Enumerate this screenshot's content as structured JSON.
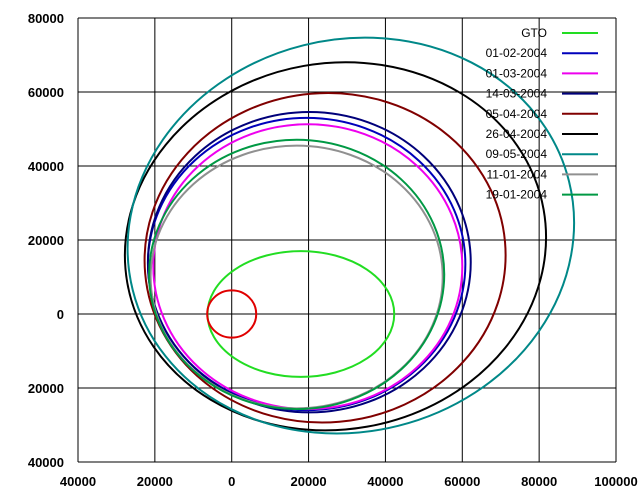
{
  "chart_data": {
    "type": "line",
    "title": "",
    "xlabel": "",
    "ylabel": "",
    "xlim": [
      -40000,
      100000
    ],
    "ylim": [
      -40000,
      80000
    ],
    "x_ticks": [
      -40000,
      -20000,
      0,
      20000,
      40000,
      60000,
      80000,
      100000
    ],
    "y_ticks": [
      -40000,
      -20000,
      0,
      20000,
      40000,
      60000,
      80000
    ],
    "x_tick_labels": [
      "40000",
      "20000",
      "0",
      "20000",
      "40000",
      "60000",
      "80000",
      "100000"
    ],
    "y_tick_labels": [
      "40000",
      "20000",
      "0",
      "20000",
      "40000",
      "60000",
      "80000"
    ],
    "grid": true,
    "legend_position": "top-right",
    "earth": {
      "center": [
        0,
        0
      ],
      "radius": 6378,
      "color": "#e00000"
    },
    "series": [
      {
        "name": "GTO",
        "color": "#22dd22",
        "center": [
          17993,
          0
        ],
        "rx": 24300,
        "ry": 17000,
        "angle": 0
      },
      {
        "name": "01-02-2004",
        "color": "#0000bb",
        "center": [
          19500,
          13500
        ],
        "rx": 41300,
        "ry": 39500,
        "angle": 0
      },
      {
        "name": "01-03-2004",
        "color": "#ee00ee",
        "center": [
          19800,
          12800
        ],
        "rx": 40200,
        "ry": 38500,
        "angle": 0
      },
      {
        "name": "14-03-2004",
        "color": "#00007a",
        "center": [
          20200,
          14000
        ],
        "rx": 42000,
        "ry": 40600,
        "angle": 0
      },
      {
        "name": "05-04-2004",
        "color": "#800000",
        "center": [
          24300,
          15200
        ],
        "rx": 47000,
        "ry": 44500,
        "angle": 5
      },
      {
        "name": "26-04-2004",
        "color": "#000000",
        "center": [
          27000,
          18300
        ],
        "rx": 55000,
        "ry": 49500,
        "angle": 10
      },
      {
        "name": "09-05-2004",
        "color": "#008888",
        "center": [
          31000,
          21200
        ],
        "rx": 58500,
        "ry": 53000,
        "angle": 14
      },
      {
        "name": "11-01-2004",
        "color": "#909090",
        "center": [
          16900,
          10000
        ],
        "rx": 38000,
        "ry": 35500,
        "angle": 0
      },
      {
        "name": "19-01-2004",
        "color": "#009944",
        "center": [
          16900,
          10700
        ],
        "rx": 38400,
        "ry": 36400,
        "angle": 0
      }
    ]
  }
}
